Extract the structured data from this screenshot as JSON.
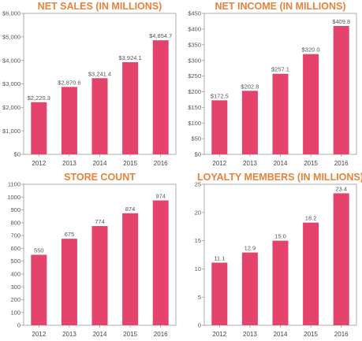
{
  "colors": {
    "bar": "#e4436b",
    "title": "#e8823a",
    "axis": "#999999"
  },
  "chart_data": [
    {
      "type": "bar",
      "title": "NET SALES (IN MILLIONS)",
      "categories": [
        "2012",
        "2013",
        "2014",
        "2015",
        "2016"
      ],
      "values": [
        2220.3,
        2870.6,
        3241.4,
        3924.1,
        4854.7
      ],
      "data_labels": [
        "$2,220.3",
        "$2,870.6",
        "$3,241.4",
        "$3,924.1",
        "$4,854.7"
      ],
      "ylim": [
        0,
        6000
      ],
      "yticks": [
        0,
        1000,
        2000,
        3000,
        4000,
        5000,
        6000
      ],
      "ytick_labels": [
        "$0",
        "$1,000",
        "$2,000",
        "$3,000",
        "$4,000",
        "$5,000",
        "$6,000"
      ],
      "grid": false
    },
    {
      "type": "bar",
      "title": "NET INCOME (IN MILLIONS)",
      "categories": [
        "2012",
        "2013",
        "2014",
        "2015",
        "2016"
      ],
      "values": [
        172.5,
        202.8,
        257.1,
        320.0,
        409.8
      ],
      "data_labels": [
        "$172.5",
        "$202.8",
        "$257.1",
        "$320.0",
        "$409.8"
      ],
      "ylim": [
        0,
        450
      ],
      "yticks": [
        0,
        50,
        100,
        150,
        200,
        250,
        300,
        350,
        400,
        450
      ],
      "ytick_labels": [
        "$0",
        "$50",
        "$100",
        "$150",
        "$200",
        "$250",
        "$300",
        "$350",
        "$400",
        "$450"
      ],
      "grid": false
    },
    {
      "type": "bar",
      "title": "STORE COUNT",
      "categories": [
        "2012",
        "2013",
        "2014",
        "2015",
        "2016"
      ],
      "values": [
        550,
        675,
        774,
        874,
        974
      ],
      "data_labels": [
        "550",
        "675",
        "774",
        "874",
        "974"
      ],
      "ylim": [
        0,
        1100
      ],
      "yticks": [
        0,
        100,
        200,
        300,
        400,
        500,
        600,
        700,
        800,
        900,
        1000,
        1100
      ],
      "ytick_labels": [
        "0",
        "100",
        "200",
        "300",
        "400",
        "500",
        "600",
        "700",
        "800",
        "900",
        "1000",
        "1100"
      ],
      "grid": false
    },
    {
      "type": "bar",
      "title": "LOYALTY MEMBERS (IN MILLIONS)",
      "categories": [
        "2012",
        "2013",
        "2014",
        "2015",
        "2016"
      ],
      "values": [
        11.1,
        12.9,
        15.0,
        18.2,
        23.4
      ],
      "data_labels": [
        "11.1",
        "12.9",
        "15.0",
        "18.2",
        "23.4"
      ],
      "ylim": [
        0,
        25
      ],
      "yticks": [
        0,
        5,
        10,
        15,
        20,
        25
      ],
      "ytick_labels": [
        "0",
        "5",
        "10",
        "15",
        "20",
        "25"
      ],
      "grid": false
    }
  ]
}
